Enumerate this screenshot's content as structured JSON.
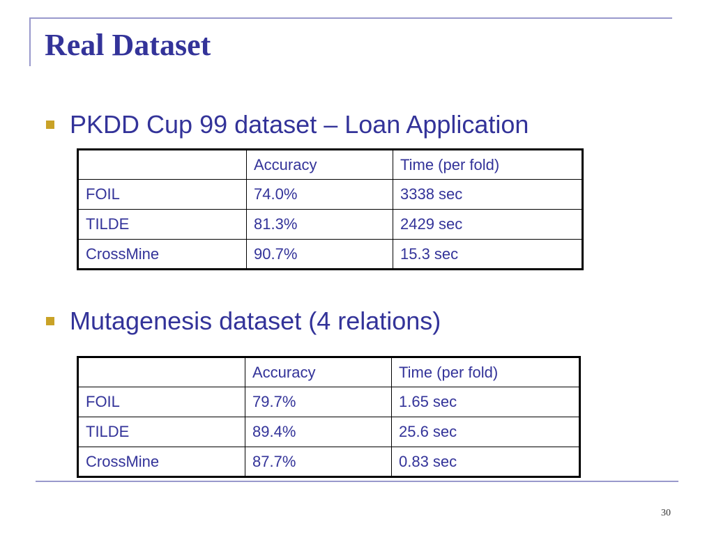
{
  "slide": {
    "title": "Real Dataset",
    "page_number": "30"
  },
  "sections": [
    {
      "bullet": "PKDD Cup 99 dataset – Loan Application",
      "table": {
        "headers": [
          "",
          "Accuracy",
          "Time (per fold)"
        ],
        "rows": [
          [
            "FOIL",
            "74.0%",
            "3338 sec"
          ],
          [
            "TILDE",
            "81.3%",
            "2429 sec"
          ],
          [
            "CrossMine",
            "90.7%",
            "15.3 sec"
          ]
        ]
      }
    },
    {
      "bullet": "Mutagenesis dataset (4 relations)",
      "table": {
        "headers": [
          "",
          "Accuracy",
          "Time (per fold)"
        ],
        "rows": [
          [
            "FOIL",
            "79.7%",
            "1.65 sec"
          ],
          [
            "TILDE",
            "89.4%",
            "25.6 sec"
          ],
          [
            "CrossMine",
            "87.7%",
            "0.83 sec"
          ]
        ]
      }
    }
  ],
  "colors": {
    "title": "#333399",
    "text": "#333399",
    "bullet_marker": "#c9a227",
    "frame_lines": "#9999cc"
  }
}
